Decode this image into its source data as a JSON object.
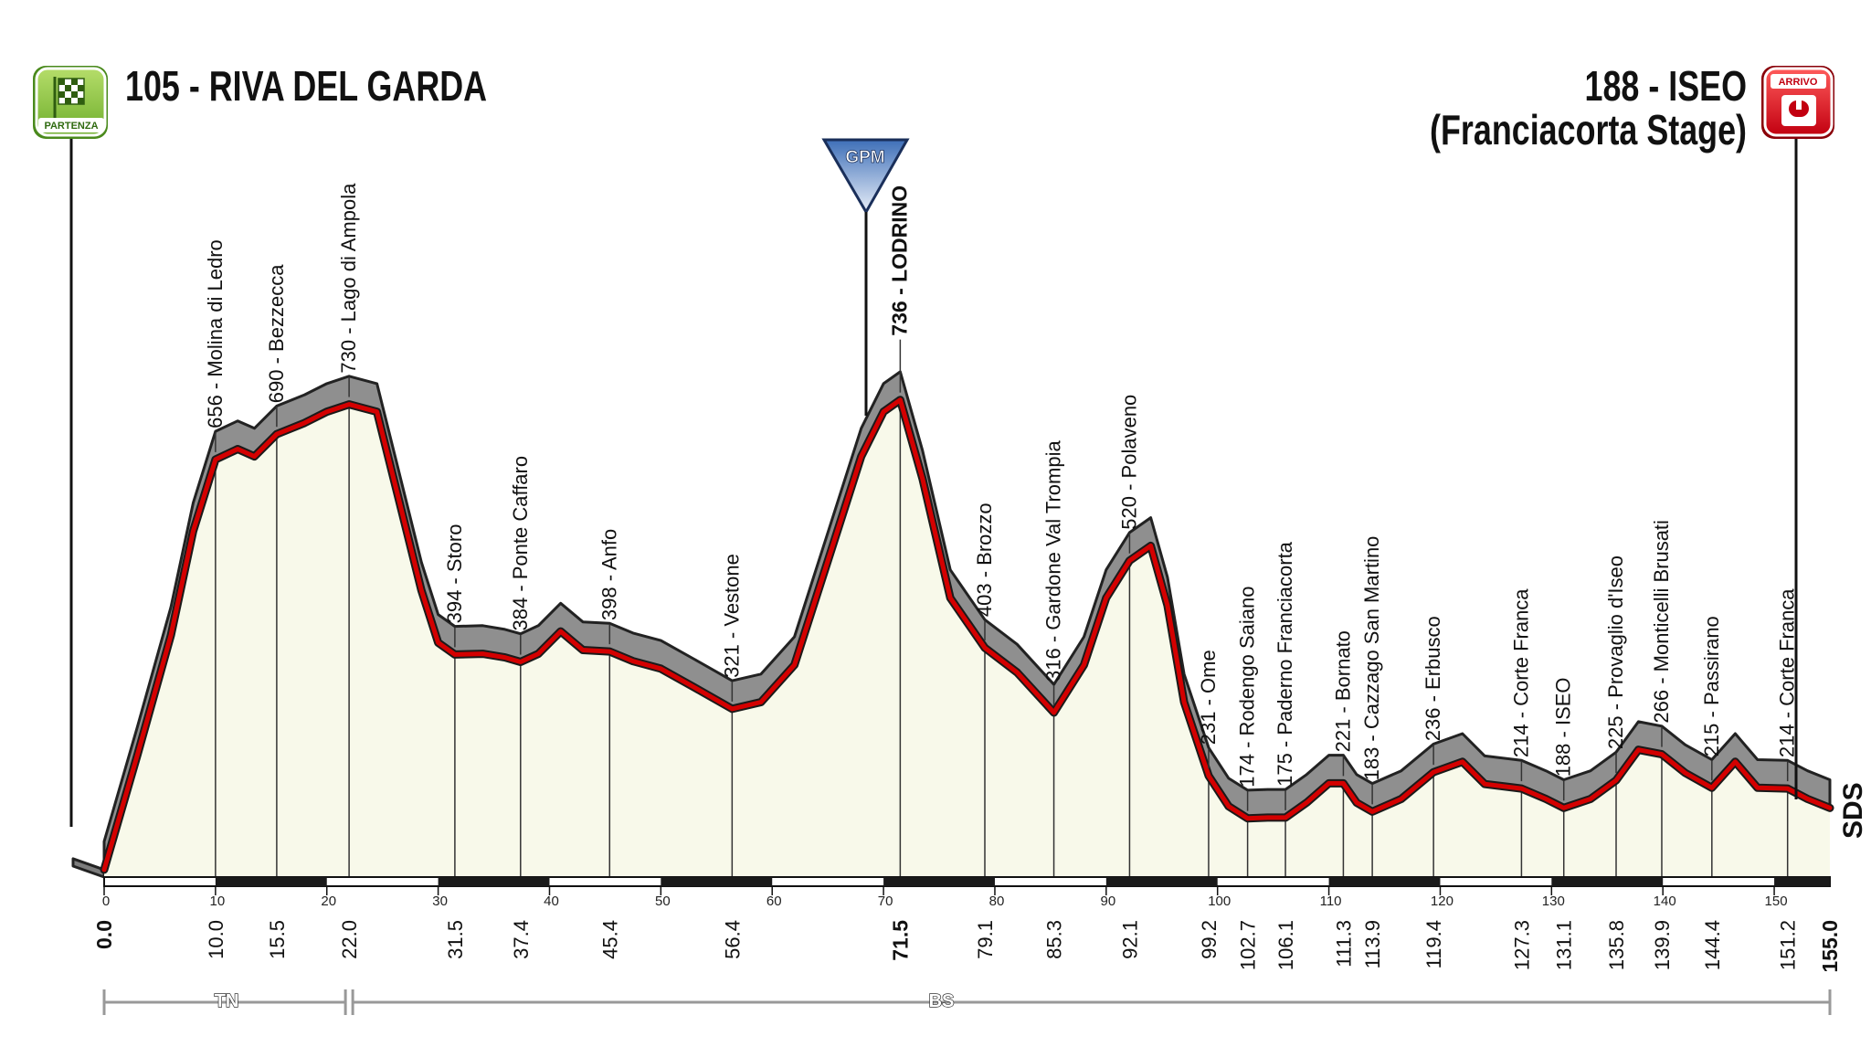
{
  "start": {
    "label": "105 - RIVA DEL GARDA",
    "badge": "PARTENZA"
  },
  "finish": {
    "label_line1": "188 - ISEO",
    "label_line2": "(Franciacorta Stage)",
    "badge": "ARRIVO"
  },
  "gpm": {
    "label": "GPM"
  },
  "provinces": [
    {
      "code": "TN",
      "from_km": 0.0,
      "to_km": 22.0
    },
    {
      "code": "BS",
      "from_km": 22.0,
      "to_km": 155.0
    }
  ],
  "footer_logo": "SDS",
  "colors": {
    "route": "#d40000",
    "fill": "#f8f9ea",
    "shadow": "#8a8a8a",
    "gpm": "#7a9ed1",
    "start_badge": "#8cc63e",
    "finish_badge": "#e30613"
  },
  "chart_data": {
    "type": "area",
    "title": "105 - RIVA DEL GARDA / 188 - ISEO (Franciacorta Stage)",
    "xlabel": "",
    "ylabel": "",
    "xlim": [
      0,
      155.0
    ],
    "ylim": [
      0,
      900
    ],
    "x_ticks": [
      0,
      10,
      20,
      30,
      40,
      50,
      60,
      70,
      80,
      90,
      100,
      110,
      120,
      130,
      140,
      150
    ],
    "profile": [
      {
        "x": 0.0,
        "y": 105
      },
      {
        "x": 3.0,
        "y": 260
      },
      {
        "x": 6.0,
        "y": 420
      },
      {
        "x": 8.0,
        "y": 560
      },
      {
        "x": 10.0,
        "y": 656
      },
      {
        "x": 12.0,
        "y": 670
      },
      {
        "x": 13.5,
        "y": 660
      },
      {
        "x": 15.5,
        "y": 690
      },
      {
        "x": 18.0,
        "y": 705
      },
      {
        "x": 20.0,
        "y": 720
      },
      {
        "x": 22.0,
        "y": 730
      },
      {
        "x": 24.5,
        "y": 720
      },
      {
        "x": 26.5,
        "y": 600
      },
      {
        "x": 28.5,
        "y": 480
      },
      {
        "x": 30.0,
        "y": 410
      },
      {
        "x": 31.5,
        "y": 394
      },
      {
        "x": 34.0,
        "y": 395
      },
      {
        "x": 36.0,
        "y": 390
      },
      {
        "x": 37.4,
        "y": 384
      },
      {
        "x": 39.0,
        "y": 395
      },
      {
        "x": 41.0,
        "y": 425
      },
      {
        "x": 43.0,
        "y": 400
      },
      {
        "x": 45.4,
        "y": 398
      },
      {
        "x": 47.5,
        "y": 385
      },
      {
        "x": 50.0,
        "y": 375
      },
      {
        "x": 53.0,
        "y": 350
      },
      {
        "x": 56.4,
        "y": 321
      },
      {
        "x": 59.0,
        "y": 330
      },
      {
        "x": 62.0,
        "y": 380
      },
      {
        "x": 65.0,
        "y": 520
      },
      {
        "x": 68.0,
        "y": 660
      },
      {
        "x": 70.0,
        "y": 720
      },
      {
        "x": 71.5,
        "y": 736
      },
      {
        "x": 73.5,
        "y": 630
      },
      {
        "x": 76.0,
        "y": 470
      },
      {
        "x": 79.1,
        "y": 403
      },
      {
        "x": 82.0,
        "y": 370
      },
      {
        "x": 85.3,
        "y": 316
      },
      {
        "x": 88.0,
        "y": 380
      },
      {
        "x": 90.0,
        "y": 470
      },
      {
        "x": 92.1,
        "y": 520
      },
      {
        "x": 94.0,
        "y": 540
      },
      {
        "x": 95.5,
        "y": 460
      },
      {
        "x": 97.0,
        "y": 330
      },
      {
        "x": 99.2,
        "y": 231
      },
      {
        "x": 101.0,
        "y": 190
      },
      {
        "x": 102.7,
        "y": 174
      },
      {
        "x": 104.5,
        "y": 175
      },
      {
        "x": 106.1,
        "y": 175
      },
      {
        "x": 108.0,
        "y": 195
      },
      {
        "x": 110.0,
        "y": 221
      },
      {
        "x": 111.3,
        "y": 221
      },
      {
        "x": 112.5,
        "y": 195
      },
      {
        "x": 113.9,
        "y": 183
      },
      {
        "x": 116.5,
        "y": 200
      },
      {
        "x": 119.4,
        "y": 236
      },
      {
        "x": 122.0,
        "y": 250
      },
      {
        "x": 124.0,
        "y": 220
      },
      {
        "x": 127.3,
        "y": 214
      },
      {
        "x": 129.5,
        "y": 200
      },
      {
        "x": 131.1,
        "y": 188
      },
      {
        "x": 133.5,
        "y": 200
      },
      {
        "x": 135.8,
        "y": 225
      },
      {
        "x": 137.8,
        "y": 266
      },
      {
        "x": 139.9,
        "y": 260
      },
      {
        "x": 142.0,
        "y": 235
      },
      {
        "x": 144.4,
        "y": 215
      },
      {
        "x": 146.5,
        "y": 250
      },
      {
        "x": 148.5,
        "y": 215
      },
      {
        "x": 151.2,
        "y": 214
      },
      {
        "x": 153.0,
        "y": 200
      },
      {
        "x": 155.0,
        "y": 188
      }
    ],
    "waypoints": [
      {
        "km": 10.0,
        "elev": 656,
        "name": "Molina di Ledro",
        "label": "656 - Molina di Ledro"
      },
      {
        "km": 15.5,
        "elev": 690,
        "name": "Bezzecca",
        "label": "690 - Bezzecca"
      },
      {
        "km": 22.0,
        "elev": 730,
        "name": "Lago di Ampola",
        "label": "730 - Lago di Ampola"
      },
      {
        "km": 31.5,
        "elev": 394,
        "name": "Storo",
        "label": "394 - Storo"
      },
      {
        "km": 37.4,
        "elev": 384,
        "name": "Ponte Caffaro",
        "label": "384 - Ponte Caffaro"
      },
      {
        "km": 45.4,
        "elev": 398,
        "name": "Anfo",
        "label": "398 - Anfo"
      },
      {
        "km": 56.4,
        "elev": 321,
        "name": "Vestone",
        "label": "321 - Vestone"
      },
      {
        "km": 71.5,
        "elev": 736,
        "name": "LODRINO",
        "label": "736 - LODRINO",
        "gpm": true
      },
      {
        "km": 79.1,
        "elev": 403,
        "name": "Brozzo",
        "label": "403 - Brozzo"
      },
      {
        "km": 85.3,
        "elev": 316,
        "name": "Gardone Val Trompia",
        "label": "316 - Gardone Val Trompia"
      },
      {
        "km": 92.1,
        "elev": 520,
        "name": "Polaveno",
        "label": "520 - Polaveno"
      },
      {
        "km": 99.2,
        "elev": 231,
        "name": "Ome",
        "label": "231 - Ome"
      },
      {
        "km": 102.7,
        "elev": 174,
        "name": "Rodengo Saiano",
        "label": "174 - Rodengo Saiano"
      },
      {
        "km": 106.1,
        "elev": 175,
        "name": "Paderno Franciacorta",
        "label": "175 - Paderno Franciacorta"
      },
      {
        "km": 111.3,
        "elev": 221,
        "name": "Bornato",
        "label": "221 - Bornato"
      },
      {
        "km": 113.9,
        "elev": 183,
        "name": "Cazzago San Martino",
        "label": "183 - Cazzago San Martino"
      },
      {
        "km": 119.4,
        "elev": 236,
        "name": "Erbusco",
        "label": "236 - Erbusco"
      },
      {
        "km": 127.3,
        "elev": 214,
        "name": "Corte Franca",
        "label": "214 - Corte Franca"
      },
      {
        "km": 131.1,
        "elev": 188,
        "name": "ISEO",
        "label": "188 - ISEO"
      },
      {
        "km": 135.8,
        "elev": 225,
        "name": "Provaglio d'Iseo",
        "label": "225 - Provaglio d'Iseo"
      },
      {
        "km": 139.9,
        "elev": 266,
        "name": "Monticelli Brusati",
        "label": "266 - Monticelli Brusati"
      },
      {
        "km": 144.4,
        "elev": 215,
        "name": "Passirano",
        "label": "215 - Passirano"
      },
      {
        "km": 151.2,
        "elev": 214,
        "name": "Corte Franca",
        "label": "214 - Corte Franca"
      }
    ],
    "km_marks": [
      {
        "km": 0.0,
        "label": "0.0",
        "bold": true
      },
      {
        "km": 10.0,
        "label": "10.0"
      },
      {
        "km": 15.5,
        "label": "15.5"
      },
      {
        "km": 22.0,
        "label": "22.0"
      },
      {
        "km": 31.5,
        "label": "31.5"
      },
      {
        "km": 37.4,
        "label": "37.4"
      },
      {
        "km": 45.4,
        "label": "45.4"
      },
      {
        "km": 56.4,
        "label": "56.4"
      },
      {
        "km": 71.5,
        "label": "71.5",
        "bold": true
      },
      {
        "km": 79.1,
        "label": "79.1"
      },
      {
        "km": 85.3,
        "label": "85.3"
      },
      {
        "km": 92.1,
        "label": "92.1"
      },
      {
        "km": 99.2,
        "label": "99.2"
      },
      {
        "km": 102.7,
        "label": "102.7"
      },
      {
        "km": 106.1,
        "label": "106.1"
      },
      {
        "km": 111.3,
        "label": "111.3"
      },
      {
        "km": 113.9,
        "label": "113.9"
      },
      {
        "km": 119.4,
        "label": "119.4"
      },
      {
        "km": 127.3,
        "label": "127.3"
      },
      {
        "km": 131.1,
        "label": "131.1"
      },
      {
        "km": 135.8,
        "label": "135.8"
      },
      {
        "km": 139.9,
        "label": "139.9"
      },
      {
        "km": 144.4,
        "label": "144.4"
      },
      {
        "km": 151.2,
        "label": "151.2"
      },
      {
        "km": 155.0,
        "label": "155.0",
        "bold": true
      }
    ]
  }
}
